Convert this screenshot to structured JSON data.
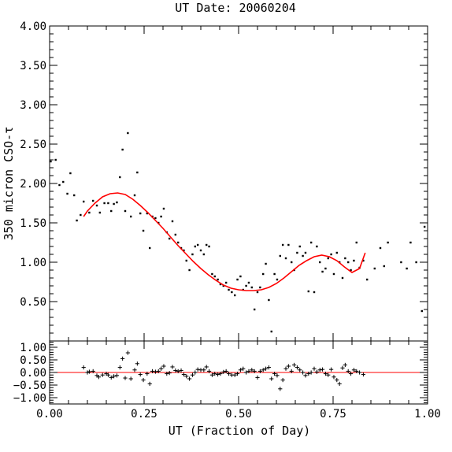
{
  "chart_data": [
    {
      "type": "scatter",
      "title": "UT Date: 20060204",
      "ylabel": "350 micron CSO-τ",
      "xlim": [
        0,
        1
      ],
      "ylim": [
        0,
        4
      ],
      "y_ticks": [
        "0.50",
        "1.00",
        "1.50",
        "2.00",
        "2.50",
        "3.00",
        "3.50",
        "4.00"
      ],
      "grid": false,
      "colors": {
        "points": "#000000",
        "fit": "#ff0000"
      },
      "series": [
        {
          "marker": "dot",
          "x": [
            0.003,
            0.016,
            0.026,
            0.036,
            0.047,
            0.055,
            0.065,
            0.072,
            0.082,
            0.09,
            0.105,
            0.115,
            0.125,
            0.133,
            0.145,
            0.155,
            0.163,
            0.17,
            0.178,
            0.186,
            0.193,
            0.2,
            0.207,
            0.215,
            0.225,
            0.232,
            0.24,
            0.248,
            0.258,
            0.265,
            0.272,
            0.28,
            0.288,
            0.295,
            0.302,
            0.31,
            0.317,
            0.325,
            0.333,
            0.34,
            0.348,
            0.355,
            0.362,
            0.37,
            0.378,
            0.385,
            0.392,
            0.4,
            0.408,
            0.415,
            0.422,
            0.43,
            0.437,
            0.445,
            0.452,
            0.46,
            0.467,
            0.474,
            0.482,
            0.49,
            0.497,
            0.505,
            0.512,
            0.52,
            0.527,
            0.535,
            0.542,
            0.55,
            0.557,
            0.565,
            0.572,
            0.58,
            0.587,
            0.595,
            0.602,
            0.61,
            0.617,
            0.625,
            0.632,
            0.64,
            0.647,
            0.655,
            0.662,
            0.67,
            0.677,
            0.685,
            0.692,
            0.7,
            0.707,
            0.715,
            0.722,
            0.73,
            0.737,
            0.745,
            0.752,
            0.76,
            0.767,
            0.775,
            0.782,
            0.79,
            0.797,
            0.805,
            0.812,
            0.82,
            0.83,
            0.84,
            0.86,
            0.875,
            0.885,
            0.895,
            0.93,
            0.945,
            0.955,
            0.97,
            0.985,
            0.992
          ],
          "y": [
            2.28,
            2.3,
            1.98,
            2.02,
            1.87,
            2.13,
            1.85,
            1.53,
            1.6,
            1.77,
            1.63,
            1.78,
            1.72,
            1.63,
            1.75,
            1.75,
            1.65,
            1.74,
            1.76,
            2.08,
            2.43,
            1.65,
            2.64,
            1.58,
            1.85,
            2.14,
            1.62,
            1.4,
            1.62,
            1.18,
            1.58,
            1.56,
            1.5,
            1.58,
            1.68,
            1.38,
            1.3,
            1.52,
            1.35,
            1.25,
            1.18,
            1.15,
            1.02,
            0.9,
            1.1,
            1.2,
            1.22,
            1.15,
            1.1,
            1.22,
            1.2,
            0.85,
            0.82,
            0.78,
            0.72,
            0.7,
            0.74,
            0.65,
            0.62,
            0.58,
            0.78,
            0.82,
            0.65,
            0.7,
            0.74,
            0.68,
            0.4,
            0.62,
            0.68,
            0.85,
            0.98,
            0.52,
            0.12,
            0.85,
            0.78,
            1.08,
            1.22,
            1.05,
            1.22,
            1.0,
            0.9,
            1.12,
            1.2,
            1.08,
            1.12,
            0.63,
            1.25,
            0.62,
            1.2,
            1.0,
            0.88,
            0.92,
            1.05,
            1.1,
            0.85,
            1.12,
            1.0,
            0.8,
            1.05,
            1.0,
            0.9,
            1.02,
            1.25,
            0.93,
            1.02,
            0.78,
            0.92,
            1.18,
            0.95,
            1.25,
            1.0,
            0.92,
            1.25,
            1.0,
            0.38,
            1.45
          ]
        },
        {
          "marker": "line",
          "x": [
            0.09,
            0.1,
            0.12,
            0.14,
            0.16,
            0.18,
            0.2,
            0.22,
            0.24,
            0.26,
            0.28,
            0.3,
            0.32,
            0.34,
            0.36,
            0.38,
            0.4,
            0.42,
            0.44,
            0.46,
            0.48,
            0.5,
            0.52,
            0.54,
            0.56,
            0.58,
            0.6,
            0.62,
            0.64,
            0.66,
            0.68,
            0.7,
            0.72,
            0.74,
            0.76,
            0.78,
            0.8,
            0.82,
            0.835
          ],
          "y": [
            1.58,
            1.65,
            1.75,
            1.83,
            1.87,
            1.88,
            1.86,
            1.8,
            1.72,
            1.63,
            1.53,
            1.43,
            1.32,
            1.21,
            1.11,
            1.01,
            0.92,
            0.84,
            0.77,
            0.71,
            0.67,
            0.65,
            0.64,
            0.64,
            0.65,
            0.68,
            0.73,
            0.8,
            0.88,
            0.96,
            1.02,
            1.07,
            1.09,
            1.07,
            1.02,
            0.94,
            0.87,
            0.92,
            1.12
          ]
        }
      ]
    },
    {
      "type": "scatter",
      "xlabel": "UT (Fraction of Day)",
      "xlim": [
        0,
        1
      ],
      "ylim": [
        -1.25,
        1.25
      ],
      "x_ticks": [
        "0.00",
        "0.25",
        "0.50",
        "0.75",
        "1.00"
      ],
      "y_ticks": [
        "1.00",
        "0.50",
        "0.00",
        "−0.50",
        "−1.00"
      ],
      "grid": false,
      "reference_line": 0,
      "colors": {
        "points": "#000000",
        "reference": "#ff0000"
      },
      "series": [
        {
          "marker": "plus",
          "x": [
            0.09,
            0.1,
            0.105,
            0.115,
            0.125,
            0.13,
            0.14,
            0.15,
            0.155,
            0.163,
            0.17,
            0.178,
            0.186,
            0.193,
            0.2,
            0.207,
            0.215,
            0.225,
            0.232,
            0.24,
            0.248,
            0.258,
            0.265,
            0.272,
            0.28,
            0.288,
            0.295,
            0.302,
            0.31,
            0.317,
            0.325,
            0.333,
            0.34,
            0.348,
            0.355,
            0.362,
            0.37,
            0.378,
            0.385,
            0.392,
            0.4,
            0.408,
            0.415,
            0.422,
            0.43,
            0.437,
            0.445,
            0.452,
            0.46,
            0.467,
            0.474,
            0.482,
            0.49,
            0.497,
            0.505,
            0.512,
            0.52,
            0.527,
            0.535,
            0.542,
            0.55,
            0.557,
            0.565,
            0.572,
            0.58,
            0.587,
            0.595,
            0.602,
            0.61,
            0.617,
            0.625,
            0.632,
            0.64,
            0.647,
            0.655,
            0.662,
            0.67,
            0.677,
            0.685,
            0.692,
            0.7,
            0.707,
            0.715,
            0.722,
            0.73,
            0.737,
            0.745,
            0.752,
            0.76,
            0.767,
            0.775,
            0.782,
            0.79,
            0.797,
            0.805,
            0.812,
            0.82,
            0.83
          ],
          "y": [
            0.2,
            0.0,
            0.03,
            0.05,
            -0.12,
            -0.18,
            -0.1,
            -0.05,
            -0.1,
            -0.2,
            -0.15,
            -0.12,
            0.2,
            0.55,
            -0.22,
            0.78,
            -0.25,
            0.1,
            0.35,
            -0.08,
            -0.3,
            -0.05,
            -0.45,
            0.05,
            0.03,
            0.05,
            0.15,
            0.25,
            -0.05,
            -0.02,
            0.22,
            0.08,
            0.05,
            0.08,
            -0.08,
            -0.15,
            -0.25,
            -0.1,
            0.0,
            0.12,
            0.1,
            0.1,
            0.22,
            0.05,
            -0.1,
            -0.05,
            -0.08,
            -0.05,
            0.02,
            0.05,
            -0.05,
            -0.1,
            -0.1,
            -0.05,
            0.1,
            0.15,
            0.0,
            0.05,
            0.1,
            0.05,
            -0.2,
            0.05,
            0.1,
            0.15,
            0.2,
            -0.25,
            -0.05,
            -0.12,
            -0.65,
            -0.3,
            0.15,
            0.25,
            0.05,
            0.3,
            0.2,
            0.1,
            0.0,
            -0.12,
            -0.05,
            0.0,
            0.15,
            0.02,
            0.1,
            0.12,
            -0.05,
            -0.1,
            0.12,
            -0.18,
            -0.3,
            -0.45,
            0.18,
            0.3,
            0.05,
            -0.05,
            0.1,
            0.05,
            0.0,
            -0.08
          ]
        }
      ]
    }
  ]
}
